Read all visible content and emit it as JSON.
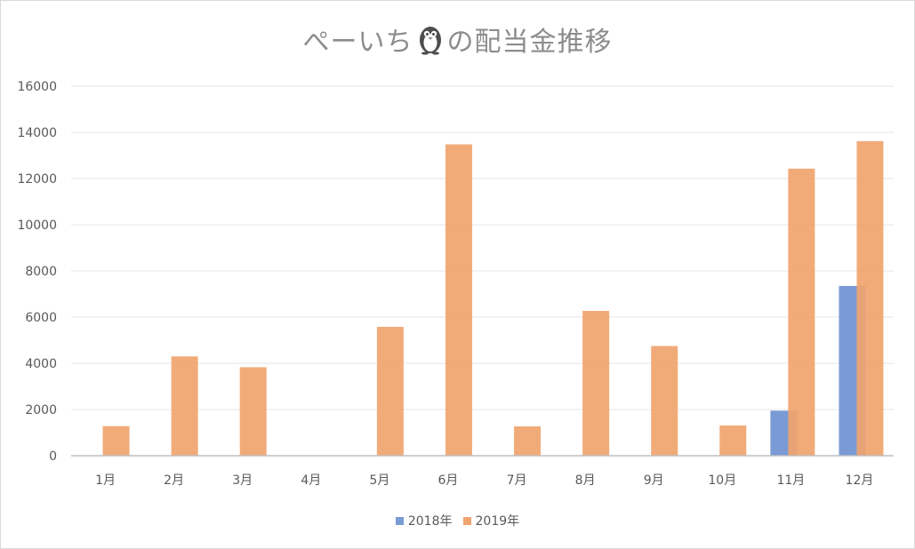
{
  "chart_data": {
    "type": "bar",
    "title_before_icon": "ぺーいち",
    "title_icon": "penguin-icon",
    "title_after_icon": "の配当金推移",
    "categories": [
      "1月",
      "2月",
      "3月",
      "4月",
      "5月",
      "6月",
      "7月",
      "8月",
      "9月",
      "10月",
      "11月",
      "12月"
    ],
    "series": [
      {
        "name": "2018年",
        "color": "#7a9ad6",
        "values": [
          0,
          0,
          0,
          0,
          0,
          0,
          0,
          0,
          0,
          0,
          1950,
          7350
        ]
      },
      {
        "name": "2019年",
        "color": "#f0a46e",
        "values": [
          1280,
          4300,
          3830,
          0,
          5580,
          13480,
          1270,
          6270,
          4750,
          1310,
          12430,
          13620
        ]
      }
    ],
    "yticks": [
      0,
      2000,
      4000,
      6000,
      8000,
      10000,
      12000,
      14000,
      16000
    ],
    "ylim": [
      0,
      16000
    ],
    "xlabel": "",
    "ylabel": "",
    "grid": true,
    "legend_position": "bottom"
  }
}
